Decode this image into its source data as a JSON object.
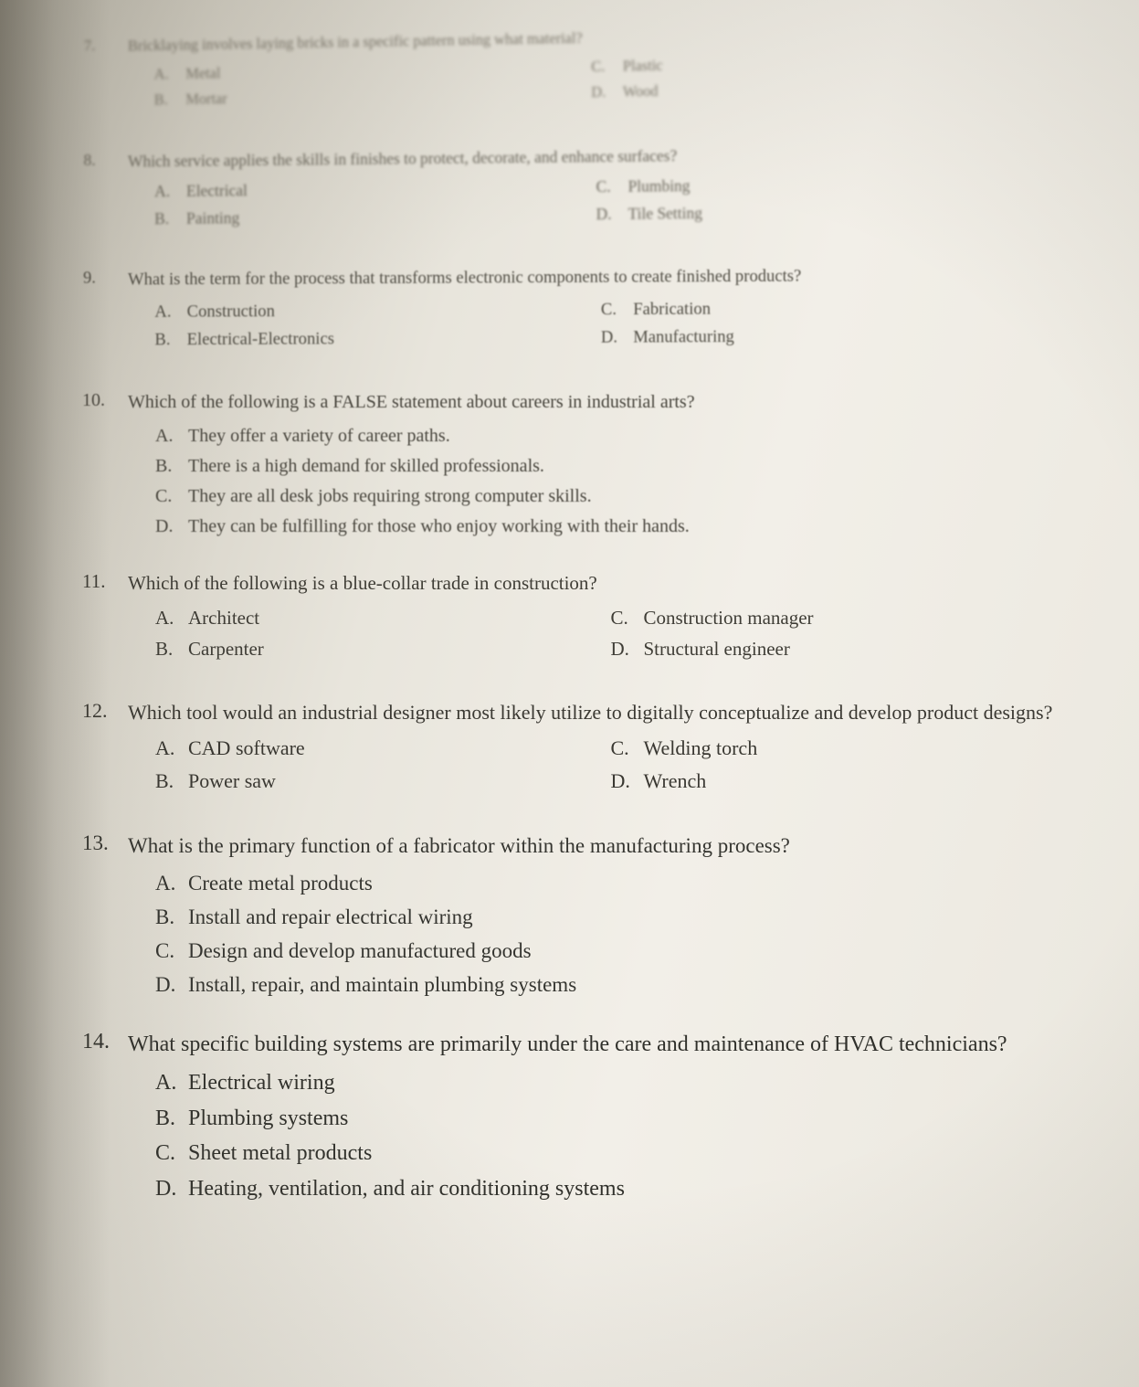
{
  "questions": [
    {
      "num": "7.",
      "text": "Bricklaying involves laying bricks in a specific pattern using what material?",
      "layout": "2col",
      "left": [
        {
          "letter": "A.",
          "text": "Metal"
        },
        {
          "letter": "B.",
          "text": "Mortar"
        }
      ],
      "right": [
        {
          "letter": "C.",
          "text": "Plastic"
        },
        {
          "letter": "D.",
          "text": "Wood"
        }
      ]
    },
    {
      "num": "8.",
      "text": "Which service applies the skills in finishes to protect, decorate, and enhance surfaces?",
      "layout": "2col",
      "left": [
        {
          "letter": "A.",
          "text": "Electrical"
        },
        {
          "letter": "B.",
          "text": "Painting"
        }
      ],
      "right": [
        {
          "letter": "C.",
          "text": "Plumbing"
        },
        {
          "letter": "D.",
          "text": "Tile Setting"
        }
      ]
    },
    {
      "num": "9.",
      "text": "What is the term for the process that transforms electronic components to create finished products?",
      "layout": "2col",
      "left": [
        {
          "letter": "A.",
          "text": "Construction"
        },
        {
          "letter": "B.",
          "text": "Electrical-Electronics"
        }
      ],
      "right": [
        {
          "letter": "C.",
          "text": "Fabrication"
        },
        {
          "letter": "D.",
          "text": "Manufacturing"
        }
      ]
    },
    {
      "num": "10.",
      "text": "Which of the following is a FALSE statement about careers in industrial arts?",
      "layout": "1col",
      "options": [
        {
          "letter": "A.",
          "text": "They offer a variety of career paths."
        },
        {
          "letter": "B.",
          "text": "There is a high demand for skilled professionals."
        },
        {
          "letter": "C.",
          "text": "They are all desk jobs requiring strong computer skills."
        },
        {
          "letter": "D.",
          "text": "They can be fulfilling for those who enjoy working with their hands."
        }
      ]
    },
    {
      "num": "11.",
      "text": "Which of the following is a blue-collar trade in construction?",
      "layout": "2col",
      "left": [
        {
          "letter": "A.",
          "text": "Architect"
        },
        {
          "letter": "B.",
          "text": "Carpenter"
        }
      ],
      "right": [
        {
          "letter": "C.",
          "text": "Construction manager"
        },
        {
          "letter": "D.",
          "text": "Structural engineer"
        }
      ]
    },
    {
      "num": "12.",
      "text": "Which tool would an industrial designer most likely utilize to digitally conceptualize and develop product designs?",
      "layout": "2col",
      "left": [
        {
          "letter": "A.",
          "text": "CAD software"
        },
        {
          "letter": "B.",
          "text": "Power saw"
        }
      ],
      "right": [
        {
          "letter": "C.",
          "text": "Welding torch"
        },
        {
          "letter": "D.",
          "text": "Wrench"
        }
      ]
    },
    {
      "num": "13.",
      "text": "What is the primary function of a fabricator within the manufacturing process?",
      "layout": "1col",
      "options": [
        {
          "letter": "A.",
          "text": "Create metal products"
        },
        {
          "letter": "B.",
          "text": "Install and repair electrical wiring"
        },
        {
          "letter": "C.",
          "text": "Design and develop manufactured goods"
        },
        {
          "letter": "D.",
          "text": "Install, repair, and maintain plumbing systems"
        }
      ]
    },
    {
      "num": "14.",
      "text": "What specific building systems are primarily under the care and maintenance of HVAC technicians?",
      "layout": "1col",
      "options": [
        {
          "letter": "A.",
          "text": "Electrical wiring"
        },
        {
          "letter": "B.",
          "text": "Plumbing systems"
        },
        {
          "letter": "C.",
          "text": "Sheet metal products"
        },
        {
          "letter": "D.",
          "text": "Heating, ventilation, and air conditioning systems"
        }
      ]
    }
  ]
}
